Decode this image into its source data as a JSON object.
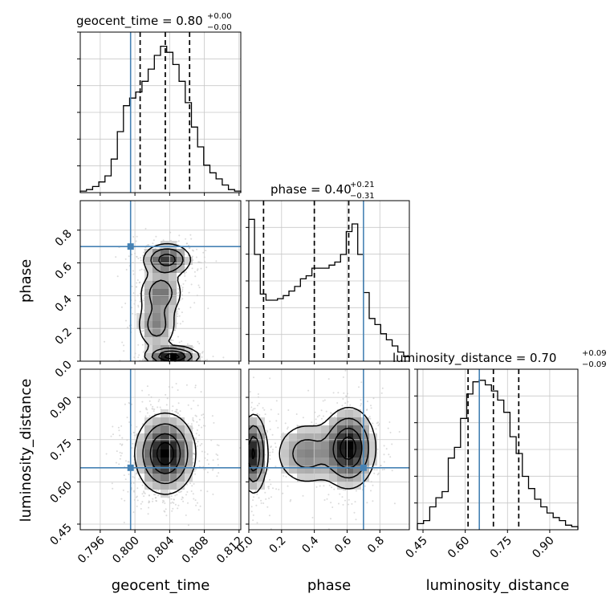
{
  "chart_data": {
    "type": "corner",
    "truth_color": "#4682b4",
    "parameters": [
      "geocent_time",
      "phase",
      "luminosity_distance"
    ],
    "truths": {
      "geocent_time": 0.7995,
      "phase": 0.7,
      "luminosity_distance": 0.65
    },
    "titles": [
      {
        "text": "geocent_time = 0.80",
        "sup": "+0.00",
        "sub": "−0.00"
      },
      {
        "text": "phase = 0.40",
        "sup": "+0.21",
        "sub": "−0.31"
      },
      {
        "text": "luminosity_distance = 0.70",
        "sup": "+0.09",
        "sub": "−0.09"
      }
    ],
    "axis_labels": {
      "x": [
        "geocent_time",
        "phase",
        "luminosity_distance"
      ],
      "y": [
        "phase",
        "luminosity_distance"
      ]
    },
    "ranges": {
      "geocent_time": [
        0.7937,
        0.8122
      ],
      "phase": [
        0.0,
        0.98
      ],
      "luminosity_distance": [
        0.43,
        1.0
      ]
    },
    "ticks": {
      "geocent_time": [
        0.796,
        0.8,
        0.804,
        0.808,
        0.812
      ],
      "geocent_time_labels": [
        "0.796",
        "0.800",
        "0.804",
        "0.808",
        "0.812"
      ],
      "phase": [
        0.0,
        0.2,
        0.4,
        0.6,
        0.8
      ],
      "phase_labels": [
        "0.0",
        "0.2",
        "0.4",
        "0.6",
        "0.8"
      ],
      "luminosity_distance": [
        0.45,
        0.6,
        0.75,
        0.9
      ],
      "luminosity_distance_labels": [
        "0.45",
        "0.60",
        "0.75",
        "0.90"
      ]
    },
    "quantiles": {
      "geocent_time": [
        0.8006,
        0.8035,
        0.8063
      ],
      "phase": [
        0.09,
        0.4,
        0.61
      ],
      "luminosity_distance": [
        0.61,
        0.7,
        0.79
      ]
    },
    "hist_1d": {
      "geocent_time": [
        0.01,
        0.02,
        0.04,
        0.07,
        0.11,
        0.22,
        0.4,
        0.57,
        0.62,
        0.66,
        0.73,
        0.81,
        0.9,
        0.96,
        0.92,
        0.84,
        0.73,
        0.59,
        0.43,
        0.3,
        0.18,
        0.13,
        0.09,
        0.05,
        0.02,
        0.01
      ],
      "phase": [
        0.93,
        0.7,
        0.44,
        0.4,
        0.4,
        0.41,
        0.43,
        0.46,
        0.49,
        0.54,
        0.56,
        0.61,
        0.61,
        0.61,
        0.63,
        0.65,
        0.7,
        0.85,
        0.9,
        0.7,
        0.45,
        0.28,
        0.24,
        0.18,
        0.14,
        0.1,
        0.06,
        0.03
      ],
      "luminosity_distance": [
        0.04,
        0.06,
        0.15,
        0.21,
        0.25,
        0.47,
        0.54,
        0.73,
        0.89,
        0.97,
        0.98,
        0.95,
        0.91,
        0.85,
        0.77,
        0.61,
        0.5,
        0.35,
        0.27,
        0.2,
        0.15,
        0.11,
        0.08,
        0.06,
        0.03,
        0.02
      ]
    },
    "density_peaks": {
      "geocent_time__phase": [
        {
          "x": 0.8043,
          "y": 0.03,
          "sx": 0.0015,
          "sy": 0.03,
          "w": 1.0
        },
        {
          "x": 0.8037,
          "y": 0.62,
          "sx": 0.0014,
          "sy": 0.05,
          "w": 0.75
        },
        {
          "x": 0.803,
          "y": 0.42,
          "sx": 0.0013,
          "sy": 0.07,
          "w": 0.5
        },
        {
          "x": 0.8025,
          "y": 0.22,
          "sx": 0.0012,
          "sy": 0.08,
          "w": 0.45
        }
      ],
      "geocent_time__luminosity_distance": [
        {
          "x": 0.8035,
          "y": 0.7,
          "sx": 0.0017,
          "sy": 0.07,
          "w": 1.0
        }
      ],
      "phase__luminosity_distance": [
        {
          "x": 0.03,
          "y": 0.7,
          "sx": 0.04,
          "sy": 0.07,
          "w": 0.9
        },
        {
          "x": 0.61,
          "y": 0.72,
          "sx": 0.08,
          "sy": 0.07,
          "w": 1.0
        },
        {
          "x": 0.35,
          "y": 0.7,
          "sx": 0.1,
          "sy": 0.06,
          "w": 0.45
        }
      ]
    }
  }
}
